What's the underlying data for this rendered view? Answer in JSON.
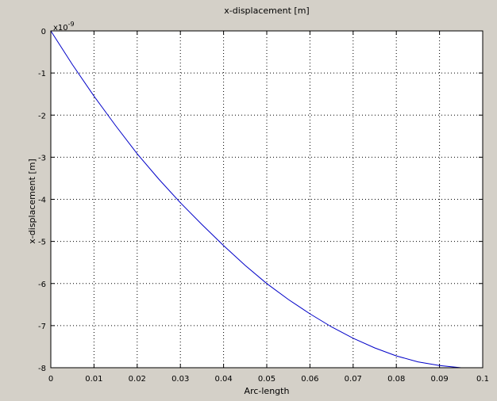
{
  "chart_data": {
    "type": "line",
    "title": "x-displacement [m]",
    "xlabel": "Arc-length",
    "ylabel": "x-displacement [m]",
    "y_exponent_label": {
      "base": "x10",
      "exponent": "-9"
    },
    "xlim": [
      0,
      0.1
    ],
    "ylim": [
      -8,
      0
    ],
    "x_ticks": [
      0,
      0.01,
      0.02,
      0.03,
      0.04,
      0.05,
      0.06,
      0.07,
      0.08,
      0.09,
      0.1
    ],
    "x_tick_labels": [
      "0",
      "0.01",
      "0.02",
      "0.03",
      "0.04",
      "0.05",
      "0.06",
      "0.07",
      "0.08",
      "0.09",
      "0.1"
    ],
    "y_ticks": [
      0,
      -1,
      -2,
      -3,
      -4,
      -5,
      -6,
      -7,
      -8
    ],
    "y_tick_labels": [
      "0",
      "-1",
      "-2",
      "-3",
      "-4",
      "-5",
      "-6",
      "-7",
      "-8"
    ],
    "grid": true,
    "grid_style": "dotted",
    "series": [
      {
        "color": "#0000c8",
        "x": [
          0,
          0.005,
          0.01,
          0.015,
          0.02,
          0.025,
          0.03,
          0.035,
          0.04,
          0.045,
          0.05,
          0.055,
          0.06,
          0.065,
          0.07,
          0.075,
          0.08,
          0.085,
          0.09,
          0.095
        ],
        "y": [
          0,
          -0.8,
          -1.55,
          -2.25,
          -2.92,
          -3.52,
          -4.08,
          -4.6,
          -5.1,
          -5.57,
          -6.0,
          -6.38,
          -6.72,
          -7.03,
          -7.3,
          -7.53,
          -7.72,
          -7.86,
          -7.95,
          -8.0
        ]
      }
    ]
  }
}
